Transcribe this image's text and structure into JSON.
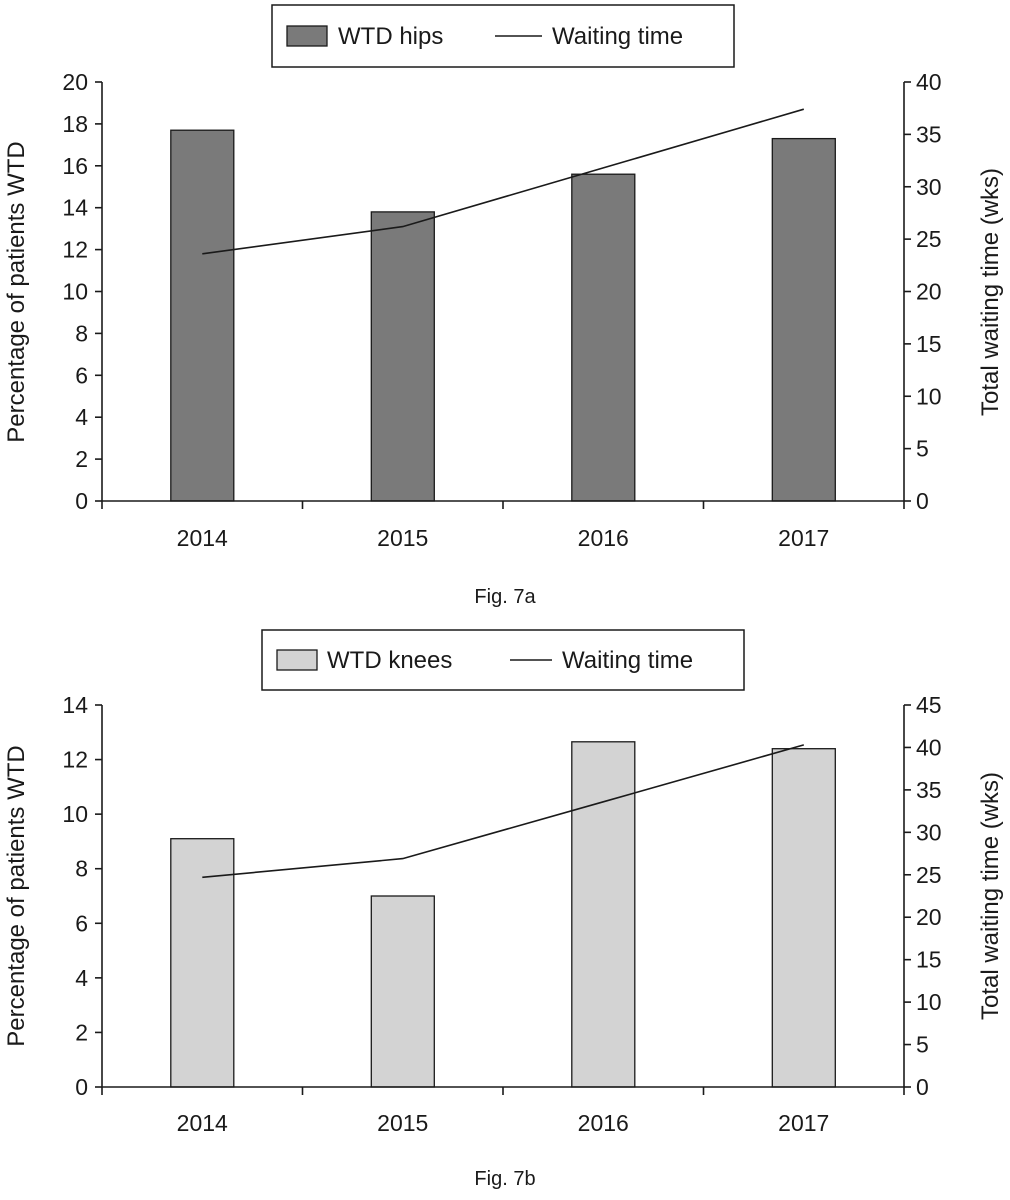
{
  "chart_data": [
    {
      "type": "bar",
      "caption": "Fig. 7a",
      "categories": [
        "2014",
        "2015",
        "2016",
        "2017"
      ],
      "series": [
        {
          "name": "WTD hips",
          "kind": "bar",
          "axis": "left",
          "color": "#7a7a7a",
          "values": [
            17.7,
            13.8,
            15.6,
            17.3
          ]
        },
        {
          "name": "Waiting time",
          "kind": "line",
          "axis": "right",
          "color": "#1a1a1a",
          "values": [
            23.6,
            26.2,
            31.8,
            37.4
          ]
        }
      ],
      "ylabel_left": "Percentage of patients WTD",
      "ylabel_right": "Total waiting time (wks)",
      "ylim_left": [
        0,
        20
      ],
      "ylim_right": [
        0,
        40
      ],
      "yticks_left": [
        "0",
        "2",
        "4",
        "6",
        "8",
        "10",
        "12",
        "14",
        "16",
        "18",
        "20"
      ],
      "yticks_right": [
        "0",
        "5",
        "10",
        "15",
        "20",
        "25",
        "30",
        "35",
        "40"
      ],
      "legend": [
        "WTD hips",
        "Waiting time"
      ],
      "legend_position": "top-center"
    },
    {
      "type": "bar",
      "caption": "Fig. 7b",
      "categories": [
        "2014",
        "2015",
        "2016",
        "2017"
      ],
      "series": [
        {
          "name": "WTD knees",
          "kind": "bar",
          "axis": "left",
          "color": "#d3d3d3",
          "values": [
            9.1,
            7.0,
            12.65,
            12.4
          ]
        },
        {
          "name": "Waiting time",
          "kind": "line",
          "axis": "right",
          "color": "#1a1a1a",
          "values": [
            24.7,
            26.9,
            33.6,
            40.3
          ]
        }
      ],
      "ylabel_left": "Percentage of patients WTD",
      "ylabel_right": "Total waiting time (wks)",
      "ylim_left": [
        0,
        14
      ],
      "ylim_right": [
        0,
        45
      ],
      "yticks_left": [
        "0",
        "2",
        "4",
        "6",
        "8",
        "10",
        "12",
        "14"
      ],
      "yticks_right": [
        "0",
        "5",
        "10",
        "15",
        "20",
        "25",
        "30",
        "35",
        "40",
        "45"
      ],
      "legend": [
        "WTD knees",
        "Waiting time"
      ],
      "legend_position": "top-center"
    }
  ]
}
